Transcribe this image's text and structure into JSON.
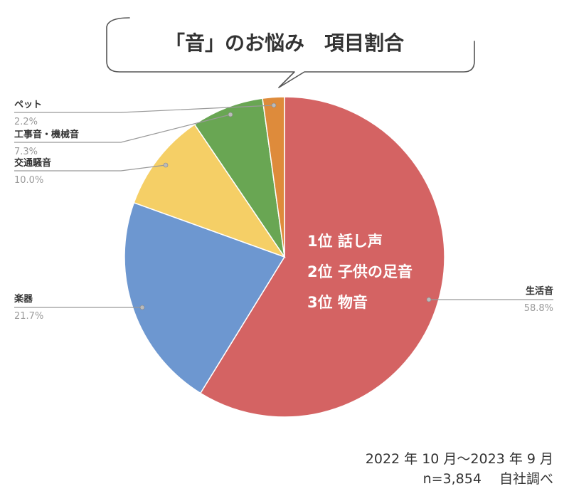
{
  "title": "「音」のお悩み　項目割合",
  "colors": {
    "生活音": "#d46363",
    "楽器": "#6d97d0",
    "交通騒音": "#f5cf66",
    "工事音・機械音": "#69a653",
    "ペット": "#de8b3b"
  },
  "chart_data": {
    "type": "pie",
    "title": "「音」のお悩み　項目割合",
    "slices": [
      {
        "label": "生活音",
        "value": 58.8,
        "value_label": "58.8%"
      },
      {
        "label": "楽器",
        "value": 21.7,
        "value_label": "21.7%"
      },
      {
        "label": "交通騒音",
        "value": 10.0,
        "value_label": "10.0%"
      },
      {
        "label": "工事音・機械音",
        "value": 7.3,
        "value_label": "7.3%"
      },
      {
        "label": "ペット",
        "value": 2.2,
        "value_label": "2.2%"
      }
    ],
    "annotation": {
      "lines": [
        "1位 話し声",
        "2位 子供の足音",
        "3位 物音"
      ]
    }
  },
  "footer": {
    "period": "2022 年 10 月～2023 年 9 月",
    "sample": "n=3,854　 自社調べ"
  }
}
